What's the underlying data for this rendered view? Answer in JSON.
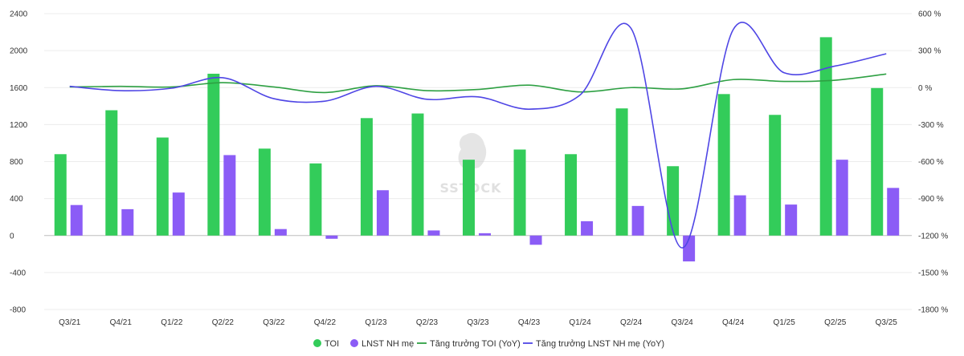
{
  "chart_data": {
    "type": "bar+line",
    "categories": [
      "Q3/21",
      "Q4/21",
      "Q1/22",
      "Q2/22",
      "Q3/22",
      "Q4/22",
      "Q1/23",
      "Q2/23",
      "Q3/23",
      "Q4/23",
      "Q1/24",
      "Q2/24",
      "Q3/24",
      "Q4/24",
      "Q1/25",
      "Q2/25",
      "Q3/25"
    ],
    "left_axis": {
      "ylim": [
        -800,
        2400
      ],
      "ticks": [
        "2400",
        "2000",
        "1600",
        "1200",
        "800",
        "400",
        "0",
        "-400",
        "-800"
      ],
      "tick_values": [
        2400,
        2000,
        1600,
        1200,
        800,
        400,
        0,
        -400,
        -800
      ]
    },
    "right_axis": {
      "ylim": [
        -1800,
        600
      ],
      "ticks": [
        "600 %",
        "300 %",
        "0 %",
        "-300 %",
        "-600 %",
        "-900 %",
        "-1200 %",
        "-1500 %",
        "-1800 %"
      ],
      "tick_values": [
        600,
        300,
        0,
        -300,
        -600,
        -900,
        -1200,
        -1500,
        -1800
      ]
    },
    "series": [
      {
        "name": "TOI",
        "type": "bar",
        "axis": "left",
        "color": "#33cc5a",
        "values": [
          880,
          1355,
          1060,
          1750,
          940,
          780,
          1270,
          1320,
          820,
          930,
          880,
          1375,
          750,
          1530,
          1305,
          2145,
          1595
        ]
      },
      {
        "name": "LNST NH mẹ",
        "type": "bar",
        "axis": "left",
        "color": "#8b5cf6",
        "values": [
          330,
          285,
          465,
          870,
          70,
          -35,
          490,
          55,
          25,
          -100,
          155,
          320,
          -280,
          435,
          335,
          820,
          515
        ]
      },
      {
        "name": "Tăng trưởng TOI (YoY)",
        "type": "line",
        "axis": "right",
        "color": "#2ea043",
        "values": [
          5,
          10,
          5,
          40,
          5,
          -40,
          15,
          -25,
          -15,
          20,
          -35,
          0,
          -10,
          65,
          50,
          60,
          110
        ]
      },
      {
        "name": "Tăng trưởng LNST NH mẹ (YoY)",
        "type": "line",
        "axis": "right",
        "color": "#4f46e5",
        "values": [
          10,
          -25,
          -5,
          80,
          -90,
          -110,
          10,
          -95,
          -75,
          -175,
          -60,
          480,
          -1300,
          470,
          120,
          175,
          275
        ]
      }
    ],
    "legend": [
      "TOI",
      "LNST NH mẹ",
      "Tăng trưởng TOI (YoY)",
      "Tăng trưởng LNST NH mẹ (YoY)"
    ],
    "legend_position": "bottom",
    "grid": true,
    "watermark": "SSTOCK"
  }
}
